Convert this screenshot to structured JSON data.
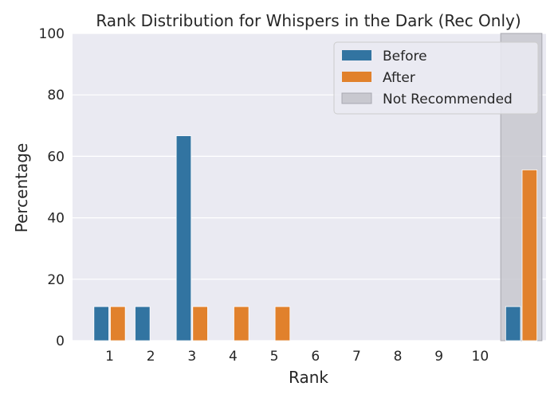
{
  "chart_data": {
    "type": "bar",
    "title": "Rank Distribution for Whispers in the Dark (Rec Only)",
    "xlabel": "Rank",
    "ylabel": "Percentage",
    "ylim": [
      0,
      100
    ],
    "yticks": [
      0,
      20,
      40,
      60,
      80,
      100
    ],
    "categories": [
      "1",
      "2",
      "3",
      "4",
      "5",
      "6",
      "7",
      "8",
      "9",
      "10",
      ""
    ],
    "series": [
      {
        "name": "Before",
        "color": "#3274a1",
        "values": [
          11.1,
          11.1,
          66.7,
          0,
          0,
          0,
          0,
          0,
          0,
          0,
          11.1
        ]
      },
      {
        "name": "After",
        "color": "#e1812c",
        "values": [
          11.1,
          0,
          11.1,
          11.1,
          11.1,
          0,
          0,
          0,
          0,
          0,
          55.6
        ]
      }
    ],
    "highlight": {
      "label": "Not Recommended",
      "category_index": 10,
      "color": "#c8c8cf"
    },
    "legend_position": "top-right",
    "grid": true,
    "background_color": "#eaeaf2"
  }
}
